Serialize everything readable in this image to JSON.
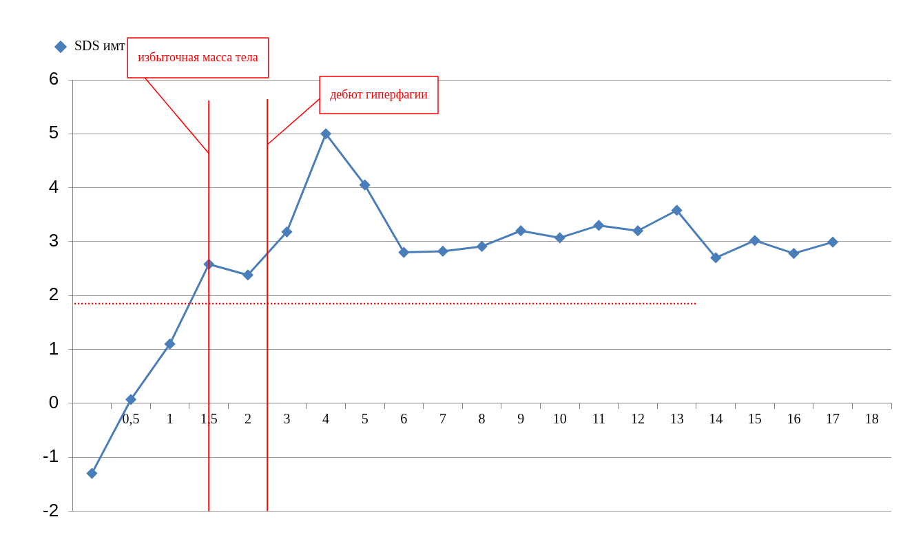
{
  "chart_data": {
    "type": "line",
    "categories": [
      null,
      "0,5",
      "1",
      "1,5",
      "2",
      "3",
      "4",
      "5",
      "6",
      "7",
      "8",
      "9",
      "10",
      "11",
      "12",
      "13",
      "14",
      "15",
      "16",
      "17",
      "18"
    ],
    "series": [
      {
        "name": "SDS имт",
        "color": "#4a7ebb",
        "values": [
          -1.3,
          0.07,
          1.1,
          2.58,
          2.38,
          3.18,
          5.0,
          4.05,
          2.8,
          2.82,
          2.91,
          3.2,
          3.07,
          3.3,
          3.2,
          3.58,
          2.7,
          3.02,
          2.78,
          2.99,
          null
        ]
      }
    ],
    "ylim": [
      -2,
      6
    ],
    "yticks": [
      -2,
      -1,
      0,
      1,
      2,
      3,
      4,
      5,
      6
    ],
    "annotations": [
      "дебют гиперфагии"
    ],
    "grid": "y",
    "legend": "top left",
    "marker": "diamond",
    "line_style": "solid",
    "ref_lines": [
      {
        "axis": "x",
        "value": "1,5",
        "label": "избыточная масса тела",
        "color": "#ff0000",
        "line_style": "solid"
      },
      {
        "axis": "y",
        "value": 1.85,
        "color": "#ff0000",
        "line_style": "dotted"
      }
    ]
  }
}
